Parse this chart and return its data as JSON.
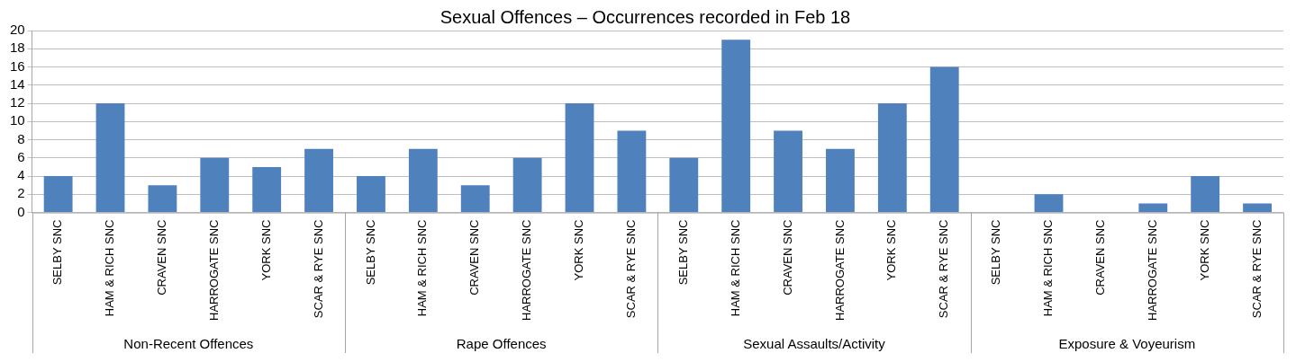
{
  "chart_data": {
    "type": "bar",
    "title": "Sexual Offences – Occurrences recorded in Feb 18",
    "categories": [
      "SELBY SNC",
      "HAM & RICH SNC",
      "CRAVEN SNC",
      "HARROGATE SNC",
      "YORK SNC",
      "SCAR & RYE SNC",
      "SELBY SNC",
      "HAM & RICH SNC",
      "CRAVEN SNC",
      "HARROGATE SNC",
      "YORK SNC",
      "SCAR & RYE SNC",
      "SELBY SNC",
      "HAM & RICH SNC",
      "CRAVEN SNC",
      "HARROGATE SNC",
      "YORK SNC",
      "SCAR & RYE SNC",
      "SELBY SNC",
      "HAM & RICH SNC",
      "CRAVEN SNC",
      "HARROGATE SNC",
      "YORK SNC",
      "SCAR & RYE SNC"
    ],
    "values": [
      4,
      12,
      3,
      6,
      5,
      7,
      4,
      7,
      3,
      6,
      12,
      9,
      6,
      19,
      9,
      7,
      12,
      16,
      0,
      2,
      0,
      1,
      4,
      1
    ],
    "color": "#4f81bd",
    "annotations": [
      "Non-Recent Offences",
      "Rape Offences",
      "Sexual Assaults/Activity",
      "Exposure & Voyeurism"
    ],
    "ylim": [
      0,
      20
    ],
    "yticks": [
      0,
      2,
      4,
      6,
      8,
      10,
      12,
      14,
      16,
      18,
      20
    ],
    "grid": "y",
    "legend": false
  }
}
